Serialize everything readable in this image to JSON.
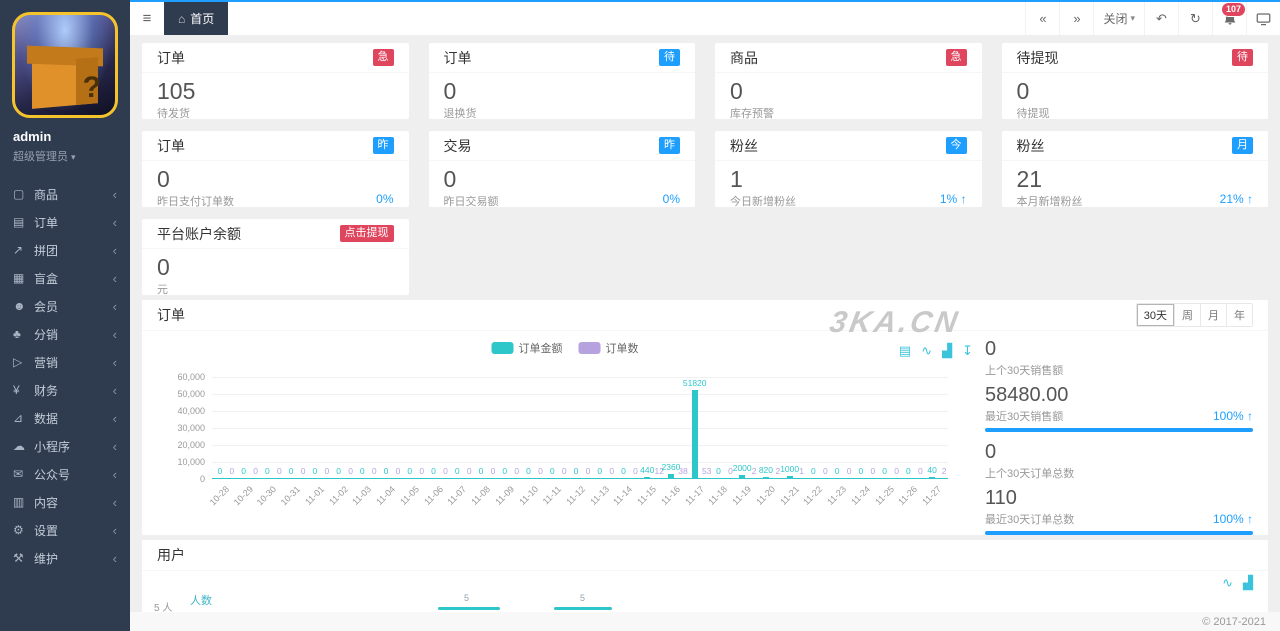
{
  "colors": {
    "accent_blue": "#1e9fff",
    "badge_red": "#e0455e",
    "series_teal": "#2ec7c9",
    "series_purple": "#b6a2de",
    "sidebar_bg": "#2f3c4f",
    "topbar_line": "#1e9fff"
  },
  "topbar": {
    "tab_label": "首页",
    "close_label": "关闭",
    "notification_count": "107",
    "icons": {
      "hamburger": "≡",
      "home": "⌂",
      "rewind": "«",
      "forward": "»",
      "caret_down": "▾",
      "undo": "↶",
      "refresh": "↻"
    }
  },
  "sidebar": {
    "logo_mark": "?",
    "username": "admin",
    "role": "超级管理员",
    "caret": "▾",
    "chevron": "‹",
    "items": [
      {
        "name": "goods",
        "glyph": "▢",
        "label": "商品"
      },
      {
        "name": "orders",
        "glyph": "▤",
        "label": "订单"
      },
      {
        "name": "groupon",
        "glyph": "↗",
        "label": "拼团"
      },
      {
        "name": "blindbox",
        "glyph": "▦",
        "label": "盲盒"
      },
      {
        "name": "members",
        "glyph": "☻",
        "label": "会员"
      },
      {
        "name": "distribution",
        "glyph": "♣",
        "label": "分销"
      },
      {
        "name": "marketing",
        "glyph": "▷",
        "label": "营销"
      },
      {
        "name": "finance",
        "glyph": "¥",
        "label": "财务"
      },
      {
        "name": "data",
        "glyph": "⊿",
        "label": "数据"
      },
      {
        "name": "miniapp",
        "glyph": "☁",
        "label": "小程序"
      },
      {
        "name": "wechat",
        "glyph": "✉",
        "label": "公众号"
      },
      {
        "name": "contentmgr",
        "glyph": "▥",
        "label": "内容"
      },
      {
        "name": "settings",
        "glyph": "⚙",
        "label": "设置"
      },
      {
        "name": "maintenance",
        "glyph": "⚒",
        "label": "维护"
      }
    ]
  },
  "stat_cards": [
    {
      "name": "orders-pending-ship",
      "title": "订单",
      "badge": "急",
      "badge_color": "red",
      "value": "105",
      "label": "待发货",
      "percent": ""
    },
    {
      "name": "orders-return",
      "title": "订单",
      "badge": "待",
      "badge_color": "blue",
      "value": "0",
      "label": "退换货",
      "percent": ""
    },
    {
      "name": "goods-stock-warning",
      "title": "商品",
      "badge": "急",
      "badge_color": "red",
      "value": "0",
      "label": "库存预警",
      "percent": ""
    },
    {
      "name": "withdraw-pending",
      "title": "待提现",
      "badge": "待",
      "badge_color": "red",
      "value": "0",
      "label": "待提现",
      "percent": ""
    },
    {
      "name": "orders-yesterday",
      "title": "订单",
      "badge": "昨",
      "badge_color": "blue",
      "value": "0",
      "label": "昨日支付订单数",
      "percent": "0%"
    },
    {
      "name": "trade-yesterday",
      "title": "交易",
      "badge": "昨",
      "badge_color": "blue",
      "value": "0",
      "label": "昨日交易额",
      "percent": "0%"
    },
    {
      "name": "fans-today",
      "title": "粉丝",
      "badge": "今",
      "badge_color": "blue",
      "value": "1",
      "label": "今日新增粉丝",
      "percent": "1% ↑"
    },
    {
      "name": "fans-month",
      "title": "粉丝",
      "badge": "月",
      "badge_color": "blue",
      "value": "21",
      "label": "本月新增粉丝",
      "percent": "21% ↑"
    }
  ],
  "balance_card": {
    "title": "平台账户余额",
    "badge": "点击提现",
    "value": "0",
    "label": "元"
  },
  "order_section": {
    "title": "订单",
    "range_buttons": [
      "30天",
      "周",
      "月",
      "年"
    ],
    "active_range": 0,
    "watermark": "3KA.CN",
    "toolbox": [
      {
        "name": "data-view-icon",
        "glyph": "▤"
      },
      {
        "name": "line-chart-icon",
        "glyph": "∿"
      },
      {
        "name": "bar-chart-icon",
        "glyph": "▟"
      },
      {
        "name": "download-icon",
        "glyph": "↧"
      }
    ],
    "stats": [
      {
        "value": "0",
        "label": "上个30天销售额",
        "percent": "",
        "bar": false
      },
      {
        "value": "58480.00",
        "label": "最近30天销售额",
        "percent": "100% ↑",
        "bar": true
      },
      {
        "value": "0",
        "label": "上个30天订单总数",
        "percent": "",
        "bar": false
      },
      {
        "value": "110",
        "label": "最近30天订单总数",
        "percent": "100% ↑",
        "bar": true
      }
    ]
  },
  "user_section": {
    "title": "用户",
    "legend": "人数",
    "ytick": "5 人",
    "bar_labels": [
      "5",
      "5"
    ],
    "toolbox": [
      {
        "name": "line-chart-icon",
        "glyph": "∿"
      },
      {
        "name": "bar-chart-icon",
        "glyph": "▟"
      }
    ]
  },
  "footer": {
    "copyright": "© 2017-2021"
  },
  "chart_data": [
    {
      "type": "bar",
      "title": "订单",
      "categories": [
        "10-28",
        "10-29",
        "10-30",
        "10-31",
        "11-01",
        "11-02",
        "11-03",
        "11-04",
        "11-05",
        "11-06",
        "11-07",
        "11-08",
        "11-09",
        "11-10",
        "11-11",
        "11-12",
        "11-13",
        "11-14",
        "11-15",
        "11-16",
        "11-17",
        "11-18",
        "11-19",
        "11-20",
        "11-21",
        "11-22",
        "11-23",
        "11-24",
        "11-25",
        "11-26",
        "11-27"
      ],
      "series": [
        {
          "name": "订单金额",
          "color": "#2ec7c9",
          "values": [
            0,
            0,
            0,
            0,
            0,
            0,
            0,
            0,
            0,
            0,
            0,
            0,
            0,
            0,
            0,
            0,
            0,
            0,
            440,
            2360,
            51820,
            0,
            2000,
            820,
            1000,
            0,
            0,
            0,
            0,
            0,
            40
          ]
        },
        {
          "name": "订单数",
          "color": "#b6a2de",
          "values": [
            0,
            0,
            0,
            0,
            0,
            0,
            0,
            0,
            0,
            0,
            0,
            0,
            0,
            0,
            0,
            0,
            0,
            0,
            12,
            38,
            53,
            0,
            2,
            2,
            1,
            0,
            0,
            0,
            0,
            0,
            2
          ]
        }
      ],
      "ylim": [
        0,
        60000
      ],
      "ytick_step": 10000,
      "grid": true,
      "legend_position": "top-center",
      "x_label_rotation": -45
    },
    {
      "type": "bar",
      "title": "用户",
      "series": [
        {
          "name": "人数",
          "color": "#2ec7c9",
          "values": [
            5,
            5
          ]
        }
      ],
      "ytick_label": "5",
      "unit": "人"
    }
  ]
}
